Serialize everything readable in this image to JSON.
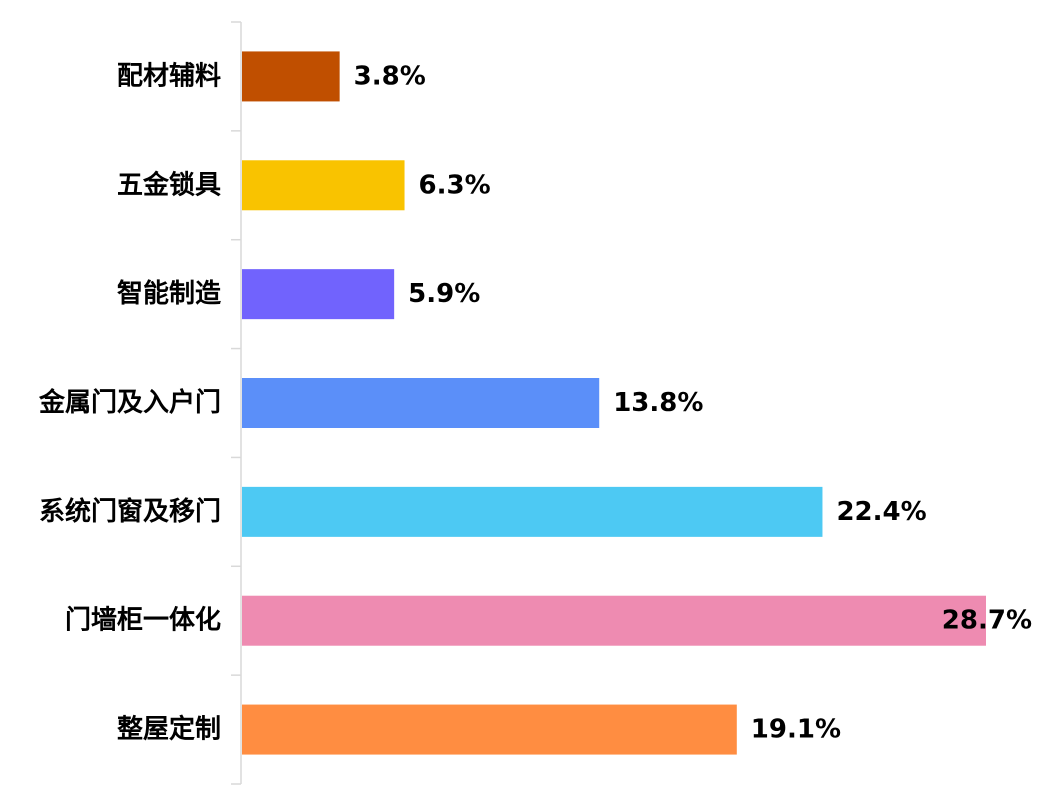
{
  "chart_data": {
    "type": "bar",
    "orientation": "horizontal",
    "title": "",
    "xlabel": "",
    "ylabel": "",
    "grid": false,
    "legend": "none",
    "xlim": [
      0,
      28.7
    ],
    "categories": [
      "配材辅料",
      "五金锁具",
      "智能制造",
      "金属门及入户门",
      "系统门窗及移门",
      "门墙柜一体化",
      "整屋定制"
    ],
    "values": [
      3.8,
      6.3,
      5.9,
      13.8,
      22.4,
      28.7,
      19.1
    ],
    "value_labels": [
      "3.8%",
      "6.3%",
      "5.9%",
      "13.8%",
      "22.4%",
      "28.7%",
      "19.1%"
    ],
    "unit": "%",
    "colors": [
      "#C04F00",
      "#F9C300",
      "#7163FD",
      "#5B8FF9",
      "#4DC9F3",
      "#EE8BB1",
      "#FF8D41"
    ],
    "axis_color": "#D9D9D9"
  }
}
